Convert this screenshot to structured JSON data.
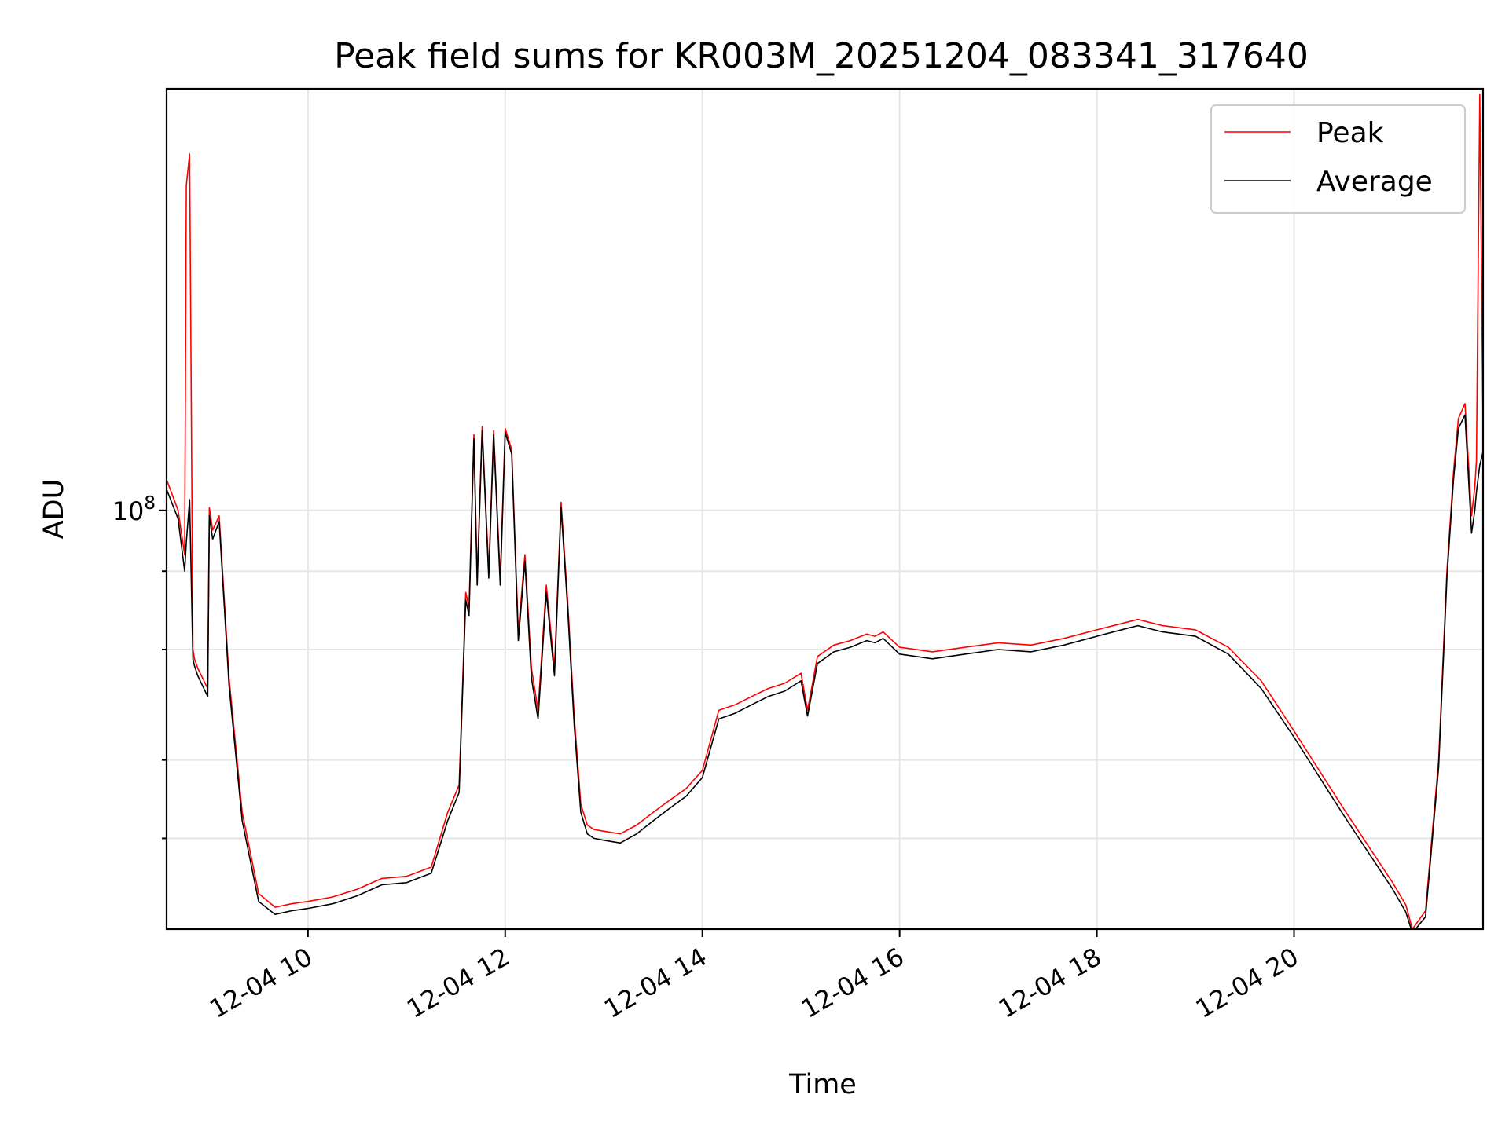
{
  "chart_data": {
    "type": "line",
    "title": "Peak field sums for KR003M_20251204_083341_317640",
    "xlabel": "Time",
    "ylabel": "ADU",
    "y_scale": "log",
    "grid": true,
    "legend_position": "top-right",
    "xlim": [
      "2025-12-04 08:34",
      "2025-12-04 21:55"
    ],
    "ylim": [
      21500000,
      470000000
    ],
    "x_ticks": [
      {
        "value": "2025-12-04 10:00",
        "label": "12-04 10"
      },
      {
        "value": "2025-12-04 12:00",
        "label": "12-04 12"
      },
      {
        "value": "2025-12-04 14:00",
        "label": "12-04 14"
      },
      {
        "value": "2025-12-04 16:00",
        "label": "12-04 16"
      },
      {
        "value": "2025-12-04 18:00",
        "label": "12-04 18"
      },
      {
        "value": "2025-12-04 20:00",
        "label": "12-04 20"
      }
    ],
    "y_ticks_major": [
      {
        "value": 100000000,
        "label": "10",
        "exponent": "8"
      }
    ],
    "y_ticks_minor": [
      30000000,
      40000000,
      60000000,
      80000000
    ],
    "x": [
      "2025-12-04 08:34",
      "2025-12-04 08:41",
      "2025-12-04 08:45",
      "2025-12-04 08:46",
      "2025-12-04 08:48",
      "2025-12-04 08:50",
      "2025-12-04 08:51",
      "2025-12-04 08:53",
      "2025-12-04 08:59",
      "2025-12-04 09:00",
      "2025-12-04 09:02",
      "2025-12-04 09:06",
      "2025-12-04 09:12",
      "2025-12-04 09:20",
      "2025-12-04 09:30",
      "2025-12-04 09:40",
      "2025-12-04 09:50",
      "2025-12-04 10:00",
      "2025-12-04 10:15",
      "2025-12-04 10:30",
      "2025-12-04 10:45",
      "2025-12-04 11:00",
      "2025-12-04 11:15",
      "2025-12-04 11:25",
      "2025-12-04 11:32",
      "2025-12-04 11:36",
      "2025-12-04 11:38",
      "2025-12-04 11:41",
      "2025-12-04 11:43",
      "2025-12-04 11:46",
      "2025-12-04 11:50",
      "2025-12-04 11:53",
      "2025-12-04 11:57",
      "2025-12-04 12:00",
      "2025-12-04 12:04",
      "2025-12-04 12:08",
      "2025-12-04 12:12",
      "2025-12-04 12:16",
      "2025-12-04 12:20",
      "2025-12-04 12:25",
      "2025-12-04 12:30",
      "2025-12-04 12:34",
      "2025-12-04 12:38",
      "2025-12-04 12:42",
      "2025-12-04 12:46",
      "2025-12-04 12:50",
      "2025-12-04 12:54",
      "2025-12-04 13:00",
      "2025-12-04 13:10",
      "2025-12-04 13:20",
      "2025-12-04 13:30",
      "2025-12-04 13:40",
      "2025-12-04 13:50",
      "2025-12-04 14:00",
      "2025-12-04 14:10",
      "2025-12-04 14:15",
      "2025-12-04 14:20",
      "2025-12-04 14:30",
      "2025-12-04 14:40",
      "2025-12-04 14:50",
      "2025-12-04 15:00",
      "2025-12-04 15:04",
      "2025-12-04 15:10",
      "2025-12-04 15:20",
      "2025-12-04 15:30",
      "2025-12-04 15:40",
      "2025-12-04 15:45",
      "2025-12-04 15:50",
      "2025-12-04 16:00",
      "2025-12-04 16:20",
      "2025-12-04 16:40",
      "2025-12-04 17:00",
      "2025-12-04 17:20",
      "2025-12-04 17:40",
      "2025-12-04 18:00",
      "2025-12-04 18:20",
      "2025-12-04 18:25",
      "2025-12-04 18:40",
      "2025-12-04 19:00",
      "2025-12-04 19:20",
      "2025-12-04 19:40",
      "2025-12-04 20:00",
      "2025-12-04 20:30",
      "2025-12-04 21:00",
      "2025-12-04 21:08",
      "2025-12-04 21:12",
      "2025-12-04 21:20",
      "2025-12-04 21:28",
      "2025-12-04 21:33",
      "2025-12-04 21:37",
      "2025-12-04 21:40",
      "2025-12-04 21:44",
      "2025-12-04 21:48",
      "2025-12-04 21:50",
      "2025-12-04 21:51",
      "2025-12-04 21:53",
      "2025-12-04 21:55"
    ],
    "series": [
      {
        "name": "Peak",
        "color": "#ff0000",
        "values": [
          112000000,
          100000000,
          85000000,
          330000000,
          370000000,
          60000000,
          58000000,
          56000000,
          52000000,
          101000000,
          93000000,
          98000000,
          54000000,
          33000000,
          24500000,
          23300000,
          23600000,
          23800000,
          24200000,
          24900000,
          25900000,
          26100000,
          27000000,
          33000000,
          36500000,
          74000000,
          70000000,
          132000000,
          78000000,
          136000000,
          80000000,
          134000000,
          78000000,
          135000000,
          125000000,
          64000000,
          85000000,
          56000000,
          48000000,
          76000000,
          56000000,
          103000000,
          72000000,
          47000000,
          34000000,
          31500000,
          31000000,
          30800000,
          30500000,
          31500000,
          33000000,
          34500000,
          36000000,
          38500000,
          48000000,
          48500000,
          49000000,
          50500000,
          52000000,
          53000000,
          55000000,
          48000000,
          58500000,
          61000000,
          62000000,
          63500000,
          63000000,
          64000000,
          60500000,
          59500000,
          60500000,
          61500000,
          61000000,
          62500000,
          64500000,
          66500000,
          67000000,
          65500000,
          64500000,
          60500000,
          53500000,
          44500000,
          33500000,
          25500000,
          23500000,
          21500000,
          23000000,
          40000000,
          80000000,
          115000000,
          140000000,
          148000000,
          98000000,
          109000000,
          120000000,
          460000000,
          135000000
        ]
      },
      {
        "name": "Average",
        "color": "#000000",
        "values": [
          108000000,
          97000000,
          80000000,
          89000000,
          104000000,
          58000000,
          56500000,
          54500000,
          50500000,
          98000000,
          90000000,
          96000000,
          52500000,
          32000000,
          23800000,
          22700000,
          23000000,
          23200000,
          23600000,
          24300000,
          25300000,
          25500000,
          26400000,
          32000000,
          35500000,
          72000000,
          68000000,
          130000000,
          76000000,
          134000000,
          78000000,
          132000000,
          76000000,
          133000000,
          123000000,
          62000000,
          83000000,
          54000000,
          46500000,
          74000000,
          54500000,
          101000000,
          70000000,
          45500000,
          33000000,
          30500000,
          30000000,
          29800000,
          29500000,
          30500000,
          32000000,
          33500000,
          35000000,
          37500000,
          46500000,
          47000000,
          47500000,
          49000000,
          50500000,
          51500000,
          53500000,
          47000000,
          57000000,
          59500000,
          60500000,
          62000000,
          61500000,
          62500000,
          59000000,
          58000000,
          59000000,
          60000000,
          59500000,
          61000000,
          63000000,
          65000000,
          65500000,
          64000000,
          63000000,
          59000000,
          52000000,
          43500000,
          32700000,
          24900000,
          22900000,
          21200000,
          22500000,
          39000000,
          78000000,
          112000000,
          135000000,
          142000000,
          92000000,
          100000000,
          107000000,
          118000000,
          124000000
        ]
      }
    ]
  }
}
